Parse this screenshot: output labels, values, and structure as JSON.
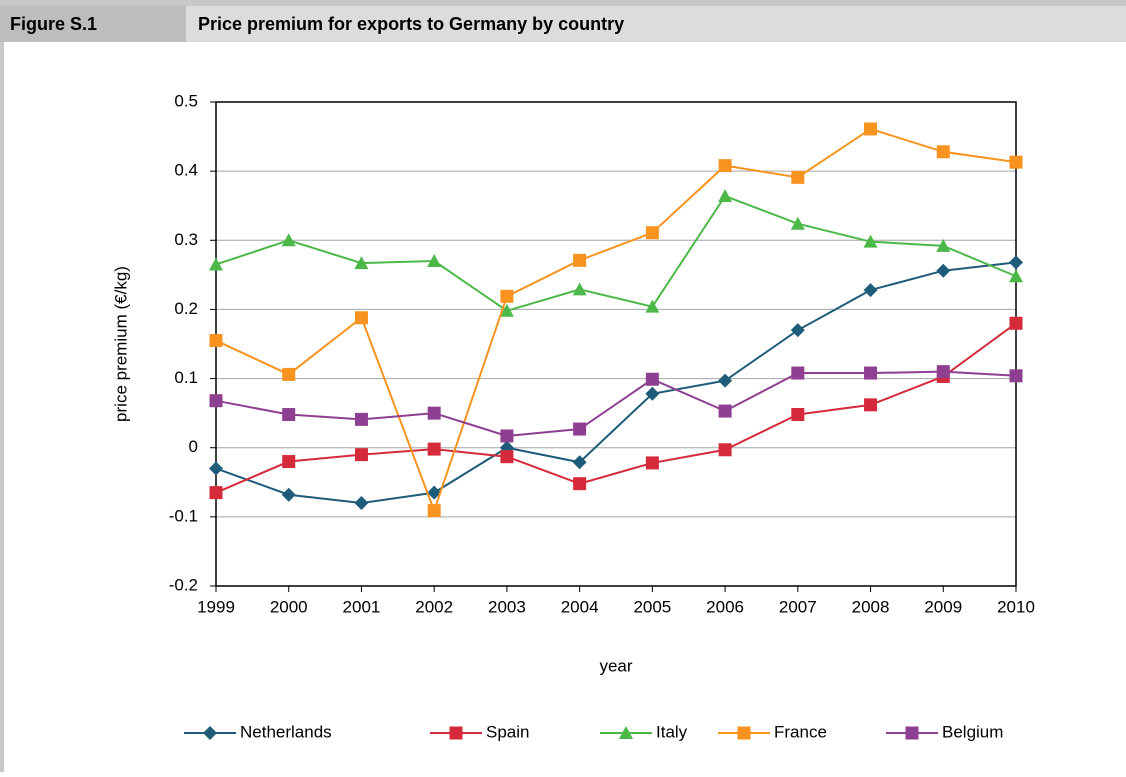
{
  "chart_data": {
    "type": "line",
    "figure_label": "Figure S.1",
    "title": "Price premium for exports to Germany by country",
    "xlabel": "year",
    "ylabel": "price premium (€/kg)",
    "x": [
      1999,
      2000,
      2001,
      2002,
      2003,
      2004,
      2005,
      2006,
      2007,
      2008,
      2009,
      2010
    ],
    "xlim": [
      1999,
      2010
    ],
    "xticks": [
      1999,
      2000,
      2001,
      2002,
      2003,
      2004,
      2005,
      2006,
      2007,
      2008,
      2009,
      2010
    ],
    "ylim": [
      -0.2,
      0.5
    ],
    "yticks": [
      -0.2,
      -0.1,
      0,
      0.1,
      0.2,
      0.3,
      0.4,
      0.5
    ],
    "grid": true,
    "legend": "bottom",
    "series": [
      {
        "name": "Netherlands",
        "color": "#1f5c7a",
        "marker": "diamond",
        "values": [
          -0.03,
          -0.068,
          -0.08,
          -0.065,
          0.0,
          -0.021,
          0.078,
          0.097,
          0.17,
          0.228,
          0.256,
          0.268
        ]
      },
      {
        "name": "Spain",
        "color": "#d42a3a",
        "marker": "square",
        "values": [
          -0.065,
          -0.02,
          -0.01,
          -0.002,
          -0.013,
          -0.052,
          -0.022,
          -0.003,
          0.048,
          0.062,
          0.103,
          0.18
        ]
      },
      {
        "name": "Italy",
        "color": "#4cb848",
        "marker": "triangle",
        "values": [
          0.265,
          0.3,
          0.267,
          0.27,
          0.198,
          0.229,
          0.204,
          0.364,
          0.324,
          0.298,
          0.292,
          0.248
        ]
      },
      {
        "name": "France",
        "color": "#f7931e",
        "marker": "square",
        "values": [
          0.155,
          0.106,
          0.188,
          -0.091,
          0.219,
          0.271,
          0.311,
          0.408,
          0.391,
          0.461,
          0.428,
          0.413
        ]
      },
      {
        "name": "Belgium",
        "color": "#8e3f91",
        "marker": "square",
        "values": [
          0.068,
          0.048,
          0.041,
          0.05,
          0.017,
          0.027,
          0.099,
          0.053,
          0.108,
          0.108,
          0.11,
          0.104
        ]
      }
    ]
  }
}
